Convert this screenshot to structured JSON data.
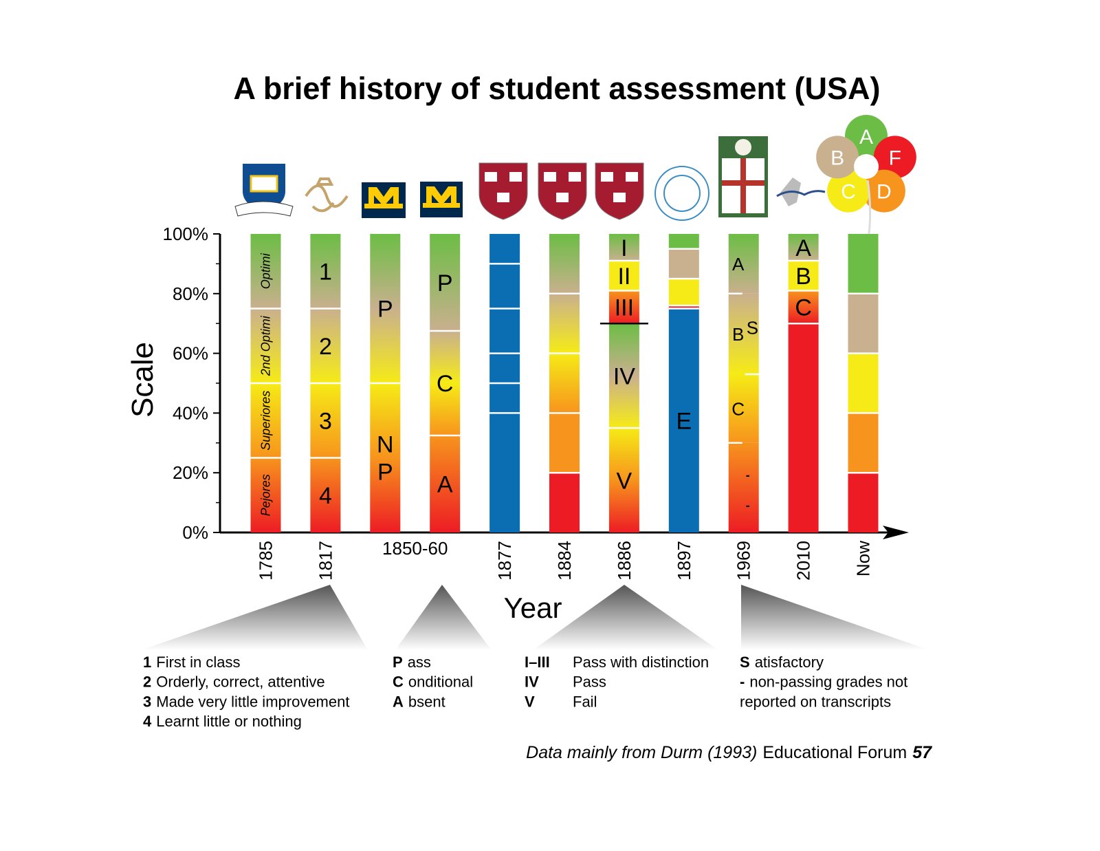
{
  "chart_data": {
    "type": "grade-scale",
    "title": "A brief history of student assessment (USA)",
    "y_label": "Scale",
    "x_label": "Year",
    "ylim": [
      0,
      100
    ],
    "yticks": [
      {
        "value": 0,
        "label": "0%"
      },
      {
        "value": 20,
        "label": "20%"
      },
      {
        "value": 40,
        "label": "40%"
      },
      {
        "value": 60,
        "label": "60%"
      },
      {
        "value": 80,
        "label": "80%"
      },
      {
        "value": 100,
        "label": "100%"
      }
    ],
    "minor_yticks": [
      10,
      30,
      50,
      70,
      90
    ],
    "categories": [
      "1785",
      "1817",
      "1850-60",
      null,
      "1877",
      "1884",
      "1886",
      "1897",
      "1969",
      "2010",
      "Now"
    ],
    "columns": [
      {
        "label_style": "rotated",
        "segments": [
          {
            "value": 25,
            "label": "Pejores",
            "colors": [
              "#ed1c24",
              "#f7941d"
            ]
          },
          {
            "value": 25,
            "label": "Superiores",
            "colors": [
              "#f7941d",
              "#f6eb16"
            ]
          },
          {
            "value": 25,
            "label": "2nd Optimi",
            "colors": [
              "#f6eb16",
              "#c9b08e"
            ]
          },
          {
            "value": 25,
            "label": "Optimi",
            "colors": [
              "#c9b08e",
              "#6cbd45"
            ]
          }
        ]
      },
      {
        "label_style": "large",
        "segments": [
          {
            "value": 25,
            "label": "4",
            "colors": [
              "#ed1c24",
              "#f7941d"
            ]
          },
          {
            "value": 25,
            "label": "3",
            "colors": [
              "#f7941d",
              "#f6eb16"
            ]
          },
          {
            "value": 25,
            "label": "2",
            "colors": [
              "#f6eb16",
              "#c9b08e"
            ]
          },
          {
            "value": 25,
            "label": "1",
            "colors": [
              "#c9b08e",
              "#6cbd45"
            ]
          }
        ]
      },
      {
        "label_style": "large",
        "segments": [
          {
            "value": 50,
            "label": [
              "N",
              "P"
            ],
            "colors": [
              "#ed1c24",
              "#f7941d",
              "#f6eb16"
            ]
          },
          {
            "value": 50,
            "label": "P",
            "colors": [
              "#f6eb16",
              "#c9b08e",
              "#6cbd45"
            ]
          }
        ]
      },
      {
        "label_style": "large",
        "segments": [
          {
            "value": 32.5,
            "label": "A",
            "colors": [
              "#ed1c24",
              "#f7941d"
            ]
          },
          {
            "value": 35,
            "label": "C",
            "colors": [
              "#f7941d",
              "#f6eb16",
              "#c9b08e"
            ]
          },
          {
            "value": 32.5,
            "label": "P",
            "colors": [
              "#c9b08e",
              "#6cbd45"
            ]
          }
        ]
      },
      {
        "label_style": "large",
        "segments": [
          {
            "value": 40,
            "colors": [
              "#0b6eb3"
            ]
          },
          {
            "value": 10,
            "colors": [
              "#0b6eb3"
            ]
          },
          {
            "value": 10,
            "colors": [
              "#0b6eb3"
            ]
          },
          {
            "value": 15,
            "colors": [
              "#0b6eb3"
            ]
          },
          {
            "value": 15,
            "colors": [
              "#0b6eb3"
            ]
          },
          {
            "value": 10,
            "colors": [
              "#0b6eb3"
            ]
          }
        ]
      },
      {
        "label_style": "large",
        "segments": [
          {
            "value": 20,
            "colors": [
              "#ed1c24"
            ]
          },
          {
            "value": 20,
            "colors": [
              "#f7941d"
            ]
          },
          {
            "value": 20,
            "colors": [
              "#f7941d",
              "#f6eb16"
            ]
          },
          {
            "value": 20,
            "colors": [
              "#f6eb16",
              "#c9b08e"
            ]
          },
          {
            "value": 20,
            "colors": [
              "#c9b08e",
              "#6cbd45"
            ]
          }
        ]
      },
      {
        "label_style": "large",
        "rule_after_segment": 1,
        "segments": [
          {
            "value": 35,
            "label": "V",
            "colors": [
              "#ed1c24",
              "#f7941d",
              "#f6eb16"
            ]
          },
          {
            "value": 35,
            "label": "IV",
            "colors": [
              "#f6eb16",
              "#c9b08e",
              "#6cbd45"
            ]
          },
          {
            "value": 11,
            "label": "III",
            "colors": [
              "#ed1c24",
              "#f7941d"
            ]
          },
          {
            "value": 10,
            "label": "II",
            "colors": [
              "#f6eb16"
            ]
          },
          {
            "value": 9,
            "label": "I",
            "colors": [
              "#c9b08e",
              "#6cbd45"
            ]
          }
        ]
      },
      {
        "label_style": "large",
        "segments": [
          {
            "value": 75,
            "label": "E",
            "colors": [
              "#0b6eb3"
            ]
          },
          {
            "value": 1,
            "colors": [
              "#ed1c24"
            ]
          },
          {
            "value": 9,
            "colors": [
              "#f6eb16"
            ]
          },
          {
            "value": 10,
            "colors": [
              "#c9b08e"
            ]
          },
          {
            "value": 5,
            "colors": [
              "#6cbd45"
            ]
          }
        ]
      },
      {
        "label_style": "small",
        "short_dividers": true,
        "segments": [
          {
            "value": 30,
            "label": [
              "-",
              "-"
            ],
            "colors": [
              "#ed1c24",
              "#f7941d"
            ]
          },
          {
            "value": 23,
            "label": "C",
            "colors": [
              "#f7941d",
              "#f6eb16"
            ]
          },
          {
            "value": 27,
            "label": "B",
            "superscript": "S",
            "colors": [
              "#f6eb16",
              "#c9b08e"
            ]
          },
          {
            "value": 20,
            "label": "A",
            "colors": [
              "#c9b08e",
              "#6cbd45"
            ]
          }
        ]
      },
      {
        "label_style": "large",
        "segments": [
          {
            "value": 70,
            "colors": [
              "#ed1c24"
            ]
          },
          {
            "value": 11,
            "label": "C",
            "colors": [
              "#ed1c24",
              "#f7941d"
            ]
          },
          {
            "value": 10,
            "label": "B",
            "colors": [
              "#f6eb16"
            ]
          },
          {
            "value": 9,
            "label": "A",
            "colors": [
              "#c9b08e",
              "#6cbd45"
            ]
          }
        ]
      },
      {
        "label_style": "large",
        "segments": [
          {
            "value": 20,
            "colors": [
              "#ed1c24"
            ]
          },
          {
            "value": 20,
            "colors": [
              "#f7941d"
            ]
          },
          {
            "value": 20,
            "colors": [
              "#f6eb16"
            ]
          },
          {
            "value": 20,
            "colors": [
              "#c9b08e"
            ]
          },
          {
            "value": 20,
            "colors": [
              "#6cbd45"
            ]
          }
        ]
      }
    ],
    "grade_flower": [
      {
        "label": "A",
        "color": "#6cbd45"
      },
      {
        "label": "F",
        "color": "#ed1c24"
      },
      {
        "label": "D",
        "color": "#f7941d"
      },
      {
        "label": "C",
        "color": "#f6eb16"
      },
      {
        "label": "B",
        "color": "#c9b08e"
      }
    ],
    "notes": [
      {
        "items": [
          {
            "key": "1",
            "text": "First in class"
          },
          {
            "key": "2",
            "text": "Orderly, correct, attentive"
          },
          {
            "key": "3",
            "text": "Made very little improvement"
          },
          {
            "key": "4",
            "text": "Learnt little or nothing"
          }
        ]
      },
      {
        "items": [
          {
            "key": "P",
            "text": "ass"
          },
          {
            "key": "C",
            "text": "onditional"
          },
          {
            "key": "A",
            "text": "bsent"
          }
        ]
      },
      {
        "items": [
          {
            "key": "I–III",
            "text": "Pass with distinction"
          },
          {
            "key": "IV",
            "text": "Pass"
          },
          {
            "key": "V",
            "text": "Fail"
          }
        ]
      },
      {
        "items": [
          {
            "key": "S",
            "text": "atisfactory"
          },
          {
            "key": "-",
            "text": "non-passing grades not"
          },
          {
            "key": null,
            "text": "reported on transcripts"
          }
        ]
      }
    ],
    "source": {
      "italic": "Data mainly from Durm (1993)",
      "plain": "Educational Forum",
      "bold_italic": "57"
    }
  }
}
